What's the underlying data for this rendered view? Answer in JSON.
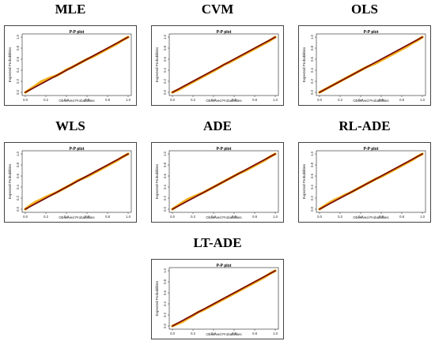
{
  "chart_data": [
    {
      "type": "line",
      "label": "MLE",
      "title": "P-P plot",
      "xlabel": "Observed Probabilities",
      "ylabel": "Expected Probabilities",
      "xlim": [
        0,
        1
      ],
      "ylim": [
        0,
        1
      ],
      "xticks": [
        "0.0",
        "0.2",
        "0.4",
        "0.6",
        "0.8",
        "1.0"
      ],
      "yticks": [
        "0.0",
        "0.2",
        "0.4",
        "0.6",
        "0.8",
        "1.0"
      ],
      "series": [
        {
          "color": "#f2b21b",
          "values": [
            [
              0.0,
              0.0
            ],
            [
              0.05,
              0.06
            ],
            [
              0.1,
              0.12
            ],
            [
              0.15,
              0.19
            ],
            [
              0.2,
              0.23
            ],
            [
              0.25,
              0.27
            ],
            [
              0.3,
              0.3
            ],
            [
              0.35,
              0.35
            ],
            [
              0.4,
              0.41
            ],
            [
              0.45,
              0.45
            ],
            [
              0.5,
              0.5
            ],
            [
              0.55,
              0.55
            ],
            [
              0.6,
              0.6
            ],
            [
              0.65,
              0.64
            ],
            [
              0.7,
              0.69
            ],
            [
              0.75,
              0.74
            ],
            [
              0.8,
              0.79
            ],
            [
              0.85,
              0.84
            ],
            [
              0.9,
              0.89
            ],
            [
              0.95,
              0.95
            ],
            [
              1.0,
              1.0
            ]
          ]
        },
        {
          "color": "#7a0a0a",
          "values": [
            [
              0,
              0
            ],
            [
              1,
              1
            ]
          ]
        }
      ]
    },
    {
      "type": "line",
      "label": "CVM",
      "title": "P-P plot",
      "xlabel": "Observed Probabilities",
      "ylabel": "Expected Probabilities",
      "xlim": [
        0,
        1
      ],
      "ylim": [
        0,
        1
      ],
      "xticks": [
        "0.0",
        "0.2",
        "0.4",
        "0.6",
        "0.8",
        "1.0"
      ],
      "yticks": [
        "0.0",
        "0.2",
        "0.4",
        "0.6",
        "0.8",
        "1.0"
      ],
      "series": [
        {
          "color": "#f2b21b",
          "values": [
            [
              0.0,
              0.0
            ],
            [
              0.05,
              0.04
            ],
            [
              0.1,
              0.09
            ],
            [
              0.15,
              0.14
            ],
            [
              0.2,
              0.19
            ],
            [
              0.25,
              0.24
            ],
            [
              0.3,
              0.29
            ],
            [
              0.35,
              0.34
            ],
            [
              0.4,
              0.39
            ],
            [
              0.45,
              0.44
            ],
            [
              0.5,
              0.5
            ],
            [
              0.55,
              0.54
            ],
            [
              0.6,
              0.59
            ],
            [
              0.65,
              0.64
            ],
            [
              0.7,
              0.69
            ],
            [
              0.75,
              0.74
            ],
            [
              0.8,
              0.79
            ],
            [
              0.85,
              0.84
            ],
            [
              0.9,
              0.89
            ],
            [
              0.95,
              0.94
            ],
            [
              1.0,
              1.0
            ]
          ]
        },
        {
          "color": "#7a0a0a",
          "values": [
            [
              0,
              0
            ],
            [
              1,
              1
            ]
          ]
        }
      ]
    },
    {
      "type": "line",
      "label": "OLS",
      "title": "P-P plot",
      "xlabel": "Observed Probabilities",
      "ylabel": "Expected Probabilities",
      "xlim": [
        0,
        1
      ],
      "ylim": [
        0,
        1
      ],
      "xticks": [
        "0.0",
        "0.2",
        "0.4",
        "0.6",
        "0.8",
        "1.0"
      ],
      "yticks": [
        "0.0",
        "0.2",
        "0.4",
        "0.6",
        "0.8",
        "1.0"
      ],
      "series": [
        {
          "color": "#f2b21b",
          "values": [
            [
              0.0,
              0.0
            ],
            [
              0.05,
              0.05
            ],
            [
              0.1,
              0.1
            ],
            [
              0.15,
              0.15
            ],
            [
              0.2,
              0.2
            ],
            [
              0.25,
              0.25
            ],
            [
              0.3,
              0.3
            ],
            [
              0.35,
              0.35
            ],
            [
              0.4,
              0.4
            ],
            [
              0.45,
              0.45
            ],
            [
              0.5,
              0.49
            ],
            [
              0.55,
              0.53
            ],
            [
              0.6,
              0.58
            ],
            [
              0.65,
              0.63
            ],
            [
              0.7,
              0.68
            ],
            [
              0.75,
              0.73
            ],
            [
              0.8,
              0.78
            ],
            [
              0.85,
              0.83
            ],
            [
              0.9,
              0.89
            ],
            [
              0.95,
              0.94
            ],
            [
              1.0,
              1.0
            ]
          ]
        },
        {
          "color": "#7a0a0a",
          "values": [
            [
              0,
              0
            ],
            [
              1,
              1
            ]
          ]
        }
      ]
    },
    {
      "type": "line",
      "label": "WLS",
      "title": "P-P plot",
      "xlabel": "Observed Probabilities",
      "ylabel": "Expected Probabilities",
      "xlim": [
        0,
        1
      ],
      "ylim": [
        0,
        1
      ],
      "xticks": [
        "0.0",
        "0.2",
        "0.4",
        "0.6",
        "0.8",
        "1.0"
      ],
      "yticks": [
        "0.0",
        "0.2",
        "0.4",
        "0.6",
        "0.8",
        "1.0"
      ],
      "series": [
        {
          "color": "#f2b21b",
          "values": [
            [
              0.0,
              0.0
            ],
            [
              0.05,
              0.07
            ],
            [
              0.1,
              0.13
            ],
            [
              0.15,
              0.17
            ],
            [
              0.2,
              0.22
            ],
            [
              0.25,
              0.26
            ],
            [
              0.3,
              0.3
            ],
            [
              0.35,
              0.35
            ],
            [
              0.4,
              0.4
            ],
            [
              0.45,
              0.45
            ],
            [
              0.5,
              0.51
            ],
            [
              0.55,
              0.55
            ],
            [
              0.6,
              0.59
            ],
            [
              0.65,
              0.64
            ],
            [
              0.7,
              0.69
            ],
            [
              0.75,
              0.74
            ],
            [
              0.8,
              0.79
            ],
            [
              0.85,
              0.84
            ],
            [
              0.9,
              0.89
            ],
            [
              0.95,
              0.95
            ],
            [
              1.0,
              1.0
            ]
          ]
        },
        {
          "color": "#7a0a0a",
          "values": [
            [
              0,
              0
            ],
            [
              1,
              1
            ]
          ]
        }
      ]
    },
    {
      "type": "line",
      "label": "ADE",
      "title": "P-P plot",
      "xlabel": "Observed Probabilities",
      "ylabel": "Expected Probabilities",
      "xlim": [
        0,
        1
      ],
      "ylim": [
        0,
        1
      ],
      "xticks": [
        "0.0",
        "0.2",
        "0.4",
        "0.6",
        "0.8",
        "1.0"
      ],
      "yticks": [
        "0.0",
        "0.2",
        "0.4",
        "0.6",
        "0.8",
        "1.0"
      ],
      "series": [
        {
          "color": "#f2b21b",
          "values": [
            [
              0.0,
              0.0
            ],
            [
              0.05,
              0.06
            ],
            [
              0.1,
              0.12
            ],
            [
              0.15,
              0.18
            ],
            [
              0.2,
              0.22
            ],
            [
              0.25,
              0.26
            ],
            [
              0.3,
              0.3
            ],
            [
              0.35,
              0.35
            ],
            [
              0.4,
              0.4
            ],
            [
              0.45,
              0.45
            ],
            [
              0.5,
              0.5
            ],
            [
              0.55,
              0.55
            ],
            [
              0.6,
              0.6
            ],
            [
              0.65,
              0.65
            ],
            [
              0.7,
              0.69
            ],
            [
              0.75,
              0.74
            ],
            [
              0.8,
              0.79
            ],
            [
              0.85,
              0.84
            ],
            [
              0.9,
              0.89
            ],
            [
              0.95,
              0.95
            ],
            [
              1.0,
              1.0
            ]
          ]
        },
        {
          "color": "#7a0a0a",
          "values": [
            [
              0,
              0
            ],
            [
              1,
              1
            ]
          ]
        }
      ]
    },
    {
      "type": "line",
      "label": "RL-ADE",
      "title": "P-P plot",
      "xlabel": "Observed Probabilities",
      "ylabel": "Expected Probabilities",
      "xlim": [
        0,
        1
      ],
      "ylim": [
        0,
        1
      ],
      "xticks": [
        "0.0",
        "0.2",
        "0.4",
        "0.6",
        "0.8",
        "1.0"
      ],
      "yticks": [
        "0.0",
        "0.2",
        "0.4",
        "0.6",
        "0.8",
        "1.0"
      ],
      "series": [
        {
          "color": "#f2b21b",
          "values": [
            [
              0.0,
              0.0
            ],
            [
              0.05,
              0.06
            ],
            [
              0.1,
              0.12
            ],
            [
              0.15,
              0.17
            ],
            [
              0.2,
              0.21
            ],
            [
              0.25,
              0.26
            ],
            [
              0.3,
              0.3
            ],
            [
              0.35,
              0.35
            ],
            [
              0.4,
              0.4
            ],
            [
              0.45,
              0.45
            ],
            [
              0.5,
              0.5
            ],
            [
              0.55,
              0.55
            ],
            [
              0.6,
              0.59
            ],
            [
              0.65,
              0.64
            ],
            [
              0.7,
              0.69
            ],
            [
              0.75,
              0.74
            ],
            [
              0.8,
              0.79
            ],
            [
              0.85,
              0.84
            ],
            [
              0.9,
              0.89
            ],
            [
              0.95,
              0.95
            ],
            [
              1.0,
              1.0
            ]
          ]
        },
        {
          "color": "#7a0a0a",
          "values": [
            [
              0,
              0
            ],
            [
              1,
              1
            ]
          ]
        }
      ]
    },
    {
      "type": "line",
      "label": "LT-ADE",
      "title": "P-P plot",
      "xlabel": "Observed Probabilities",
      "ylabel": "Expected Probabilities",
      "xlim": [
        0,
        1
      ],
      "ylim": [
        0,
        1
      ],
      "xticks": [
        "0.0",
        "0.2",
        "0.4",
        "0.6",
        "0.8",
        "1.0"
      ],
      "yticks": [
        "0.0",
        "0.2",
        "0.4",
        "0.6",
        "0.8",
        "1.0"
      ],
      "series": [
        {
          "color": "#f2b21b",
          "values": [
            [
              0.0,
              0.0
            ],
            [
              0.05,
              0.04
            ],
            [
              0.1,
              0.08
            ],
            [
              0.15,
              0.14
            ],
            [
              0.2,
              0.19
            ],
            [
              0.25,
              0.25
            ],
            [
              0.3,
              0.29
            ],
            [
              0.35,
              0.34
            ],
            [
              0.4,
              0.39
            ],
            [
              0.45,
              0.44
            ],
            [
              0.5,
              0.49
            ],
            [
              0.55,
              0.54
            ],
            [
              0.6,
              0.59
            ],
            [
              0.65,
              0.64
            ],
            [
              0.7,
              0.69
            ],
            [
              0.75,
              0.74
            ],
            [
              0.8,
              0.79
            ],
            [
              0.85,
              0.84
            ],
            [
              0.9,
              0.89
            ],
            [
              0.95,
              0.95
            ],
            [
              1.0,
              1.0
            ]
          ]
        },
        {
          "color": "#7a0a0a",
          "values": [
            [
              0,
              0
            ],
            [
              1,
              1
            ]
          ]
        }
      ]
    }
  ]
}
